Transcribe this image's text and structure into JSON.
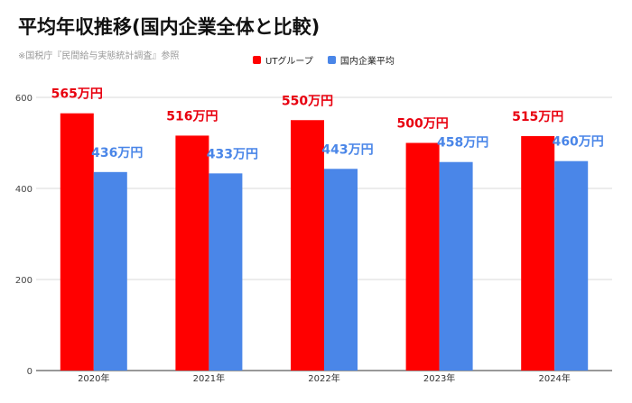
{
  "chart_data": {
    "type": "bar",
    "title": "平均年収推移(国内企業全体と比較)",
    "subtitle": "※国税庁『民間給与実態統計調査』参照",
    "categories": [
      "2020年",
      "2021年",
      "2022年",
      "2023年",
      "2024年"
    ],
    "series": [
      {
        "name": "UTグループ",
        "color": "#ff0000",
        "label_color": "#e8000f",
        "values": [
          565,
          516,
          550,
          500,
          515
        ],
        "labels": [
          "565万円",
          "516万円",
          "550万円",
          "500万円",
          "515万円"
        ]
      },
      {
        "name": "国内企業平均",
        "color": "#4a86e8",
        "label_color": "#4a86e8",
        "values": [
          436,
          433,
          443,
          458,
          460
        ],
        "labels": [
          "436万円",
          "433万円",
          "443万円",
          "458万円",
          "460万円"
        ]
      }
    ],
    "y_ticks": [
      "0",
      "200",
      "400",
      "600"
    ],
    "ylim": [
      0,
      600
    ],
    "grid": true,
    "legend_position": "top"
  }
}
